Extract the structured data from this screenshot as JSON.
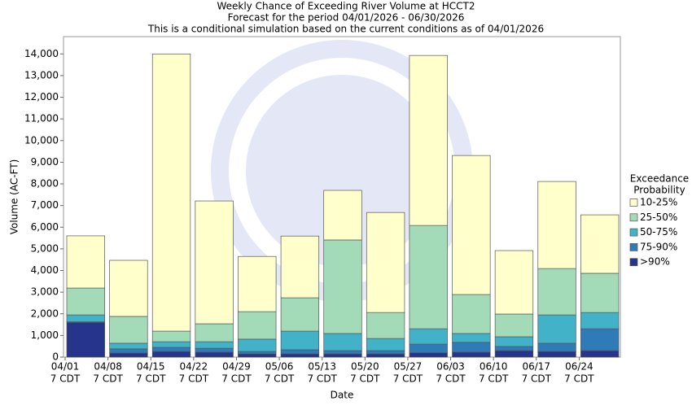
{
  "chart_data": {
    "type": "stacked_bar",
    "title": [
      "Weekly Chance of Exceeding River Volume at HCCT2",
      "Forecast for the period 04/01/2026 - 06/30/2026",
      "This is a conditional simulation based on the current conditions as of 04/01/2026"
    ],
    "x_label": "Date",
    "y_label": "Volume (AC-FT)",
    "categories": [
      "04/01",
      "04/08",
      "04/15",
      "04/22",
      "04/29",
      "05/06",
      "05/13",
      "05/20",
      "05/27",
      "06/03",
      "06/10",
      "06/17",
      "06/24"
    ],
    "category_sublabel": "7 CDT",
    "legend_title": [
      "Exceedance",
      "Probability"
    ],
    "series": [
      {
        "name": ">90%",
        "color": "#27348b",
        "values": [
          1600,
          190,
          260,
          230,
          150,
          150,
          150,
          150,
          200,
          230,
          300,
          260,
          300
        ]
      },
      {
        "name": "75-90%",
        "color": "#2f7bb7",
        "values": [
          30,
          190,
          190,
          180,
          110,
          190,
          150,
          150,
          400,
          450,
          190,
          380,
          1010
        ]
      },
      {
        "name": "50-75%",
        "color": "#41b2c8",
        "values": [
          320,
          260,
          260,
          300,
          570,
          860,
          790,
          560,
          710,
          410,
          450,
          1310,
          750
        ]
      },
      {
        "name": "25-50%",
        "color": "#a3dbb8",
        "values": [
          1240,
          1240,
          490,
          830,
          1270,
          1540,
          4320,
          1200,
          4770,
          1800,
          1050,
          2140,
          1810
        ]
      },
      {
        "name": "10-25%",
        "color": "#ffffcc",
        "values": [
          2410,
          2590,
          12800,
          5670,
          2550,
          2850,
          2290,
          4620,
          7850,
          6420,
          2930,
          4020,
          2700
        ]
      }
    ],
    "ylim": [
      0,
      14800
    ],
    "yticks": [
      0,
      {
        "value": 1000,
        "label": "1,000"
      },
      {
        "value": 2000,
        "label": "2,000"
      },
      {
        "value": 3000,
        "label": "3,000"
      },
      {
        "value": 4000,
        "label": "4,000"
      },
      {
        "value": 5000,
        "label": "5,000"
      },
      {
        "value": 6000,
        "label": "6,000"
      },
      {
        "value": 7000,
        "label": "7,000"
      },
      {
        "value": 8000,
        "label": "8,000"
      },
      {
        "value": 9000,
        "label": "9,000"
      },
      {
        "value": 10000,
        "label": "10,000"
      },
      {
        "value": 11000,
        "label": "11,000"
      },
      {
        "value": 12000,
        "label": "12,000"
      },
      {
        "value": 13000,
        "label": "13,000"
      },
      {
        "value": 14000,
        "label": "14,000"
      }
    ],
    "grid": false,
    "legend": "right"
  }
}
